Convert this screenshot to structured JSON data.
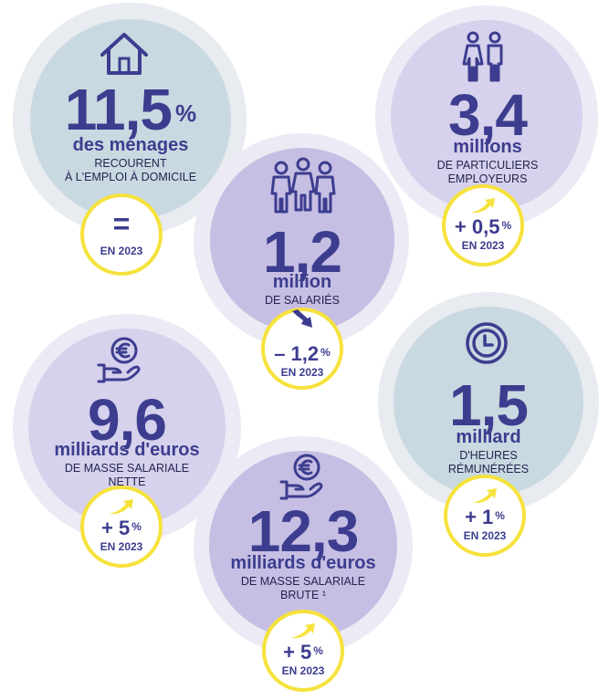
{
  "stats": {
    "households": {
      "value": "11,5",
      "suffix": "%",
      "unit": "des ménages",
      "desc_line1": "RECOURENT",
      "desc_line2": "À L'EMPLOI À DOMICILE",
      "badge_value": "=",
      "badge_year": "EN 2023",
      "icon": "house-icon"
    },
    "employers": {
      "value": "3,4",
      "unit": "millions",
      "desc_line1": "DE PARTICULIERS",
      "desc_line2": "EMPLOYEURS",
      "badge_value": "+ 0,5",
      "badge_suffix": "%",
      "badge_year": "EN 2023",
      "trend": "up",
      "icon": "couple-icon"
    },
    "employees": {
      "value": "1,2",
      "unit": "million",
      "desc_line1": "DE SALARIÉS",
      "badge_value": "– 1,2",
      "badge_suffix": "%",
      "badge_year": "EN 2023",
      "trend": "down",
      "icon": "group-icon"
    },
    "net_payroll": {
      "value": "9,6",
      "unit": "milliards d'euros",
      "desc_line1": "DE MASSE SALARIALE",
      "desc_line2": "NETTE",
      "badge_value": "+ 5",
      "badge_suffix": "%",
      "badge_year": "EN 2023",
      "trend": "up",
      "icon": "euro-hand-icon"
    },
    "hours": {
      "value": "1,5",
      "unit": "milliard",
      "desc_line1": "D'HEURES",
      "desc_line2": "RÉMUNÉRÉES",
      "badge_value": "+ 1",
      "badge_suffix": "%",
      "badge_year": "EN 2023",
      "trend": "up",
      "icon": "clock-icon"
    },
    "gross_payroll": {
      "value": "12,3",
      "unit": "milliards d'euros",
      "desc_line1": "DE MASSE SALARIALE",
      "desc_line2": "BRUTE ¹",
      "badge_value": "+ 5",
      "badge_suffix": "%",
      "badge_year": "EN 2023",
      "trend": "up",
      "icon": "euro-hand-icon"
    }
  },
  "colors": {
    "navy": "#3c3d8f",
    "blue_grey": "#c9d9e1",
    "lavender": "#d6d1ec",
    "lavender_dark": "#c6bfe3",
    "ring_light": "#eceaf4",
    "yellow": "#f6e23c"
  }
}
